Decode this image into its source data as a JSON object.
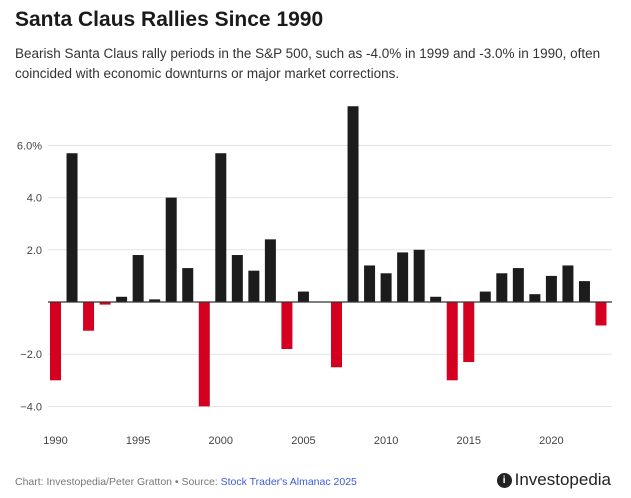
{
  "chart_data": {
    "type": "bar",
    "title": "Santa Claus Rallies Since 1990",
    "subtitle": "Bearish Santa Claus rally periods in the S&P 500, such as -4.0% in 1999 and -3.0% in 1990, often coincided with economic downturns or major market corrections.",
    "xlabel": "",
    "ylabel": "",
    "categories": [
      1990,
      1991,
      1992,
      1993,
      1994,
      1995,
      1996,
      1997,
      1998,
      1999,
      2000,
      2001,
      2002,
      2003,
      2004,
      2005,
      2006,
      2007,
      2008,
      2009,
      2010,
      2011,
      2012,
      2013,
      2014,
      2015,
      2016,
      2017,
      2018,
      2019,
      2020,
      2021,
      2022,
      2023
    ],
    "values": [
      -3.0,
      5.7,
      -1.1,
      -0.1,
      0.2,
      1.8,
      0.1,
      4.0,
      1.3,
      -4.0,
      5.7,
      1.8,
      1.2,
      2.4,
      -1.8,
      0.4,
      0.0,
      -2.5,
      7.5,
      1.4,
      1.1,
      1.9,
      2.0,
      0.2,
      -3.0,
      -2.3,
      0.4,
      1.1,
      1.3,
      0.3,
      1.0,
      1.4,
      0.8,
      -0.9
    ],
    "ylim": [
      -5,
      8
    ],
    "yticks": [
      {
        "v": 6,
        "label": "6.0%"
      },
      {
        "v": 4,
        "label": "4.0"
      },
      {
        "v": 2,
        "label": "2.0"
      },
      {
        "v": -2,
        "label": "−2.0"
      },
      {
        "v": -4,
        "label": "−4.0"
      }
    ],
    "xticks": [
      {
        "v": 1990,
        "label": "1990"
      },
      {
        "v": 1995,
        "label": "1995"
      },
      {
        "v": 2000,
        "label": "2000"
      },
      {
        "v": 2005,
        "label": "2005"
      },
      {
        "v": 2010,
        "label": "2010"
      },
      {
        "v": 2015,
        "label": "2015"
      },
      {
        "v": 2020,
        "label": "2020"
      }
    ],
    "grid": true,
    "colors": {
      "positive": "#1c1c1c",
      "negative": "#d50020",
      "grid": "#e3e3e3",
      "axis": "#333333"
    }
  },
  "footer": {
    "credit": "Chart: Investopedia/Peter Gratton • Source: ",
    "source_link": "Stock Trader's Almanac 2025"
  },
  "logo": {
    "text": "Investopedia"
  }
}
